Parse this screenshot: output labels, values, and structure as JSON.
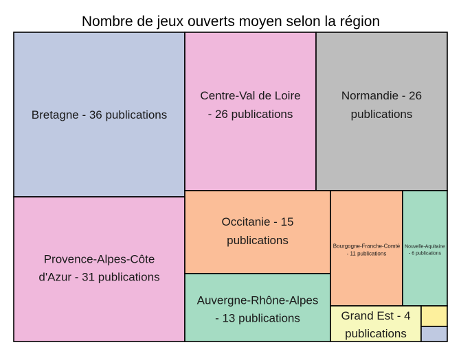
{
  "chart_data": {
    "type": "treemap",
    "title": "Nombre de jeux ouverts moyen selon la région",
    "tiles": [
      {
        "label": "Bretagne - 36 publications",
        "value": 36,
        "color": "#bfc9e1"
      },
      {
        "label": "Provence-Alpes-Côte d'Azur - 31 publications",
        "value": 31,
        "color": "#f0b8dc"
      },
      {
        "label": "Centre-Val de Loire - 26 publications",
        "value": 26,
        "color": "#f0b8dc"
      },
      {
        "label": "Normandie - 26 publications",
        "value": 26,
        "color": "#bdbdbd"
      },
      {
        "label": "Occitanie - 15 publications",
        "value": 15,
        "color": "#fbbe98"
      },
      {
        "label": "Auvergne-Rhône-Alpes - 13 publications",
        "value": 13,
        "color": "#a5dcc3"
      },
      {
        "label": "Bourgogne-Franche-Comté - 11 publications",
        "value": 11,
        "color": "#fbbe98"
      },
      {
        "label": "Nouvelle-Aquitaine - 6 publications",
        "value": 6,
        "color": "#a5dcc3"
      },
      {
        "label": "Grand Est - 4 publications",
        "value": 4,
        "color": "#f7f8bd"
      },
      {
        "label": "",
        "value": 1,
        "color": "#fdf09d"
      },
      {
        "label": "",
        "value": 1,
        "color": "#bfc9e1"
      }
    ]
  }
}
